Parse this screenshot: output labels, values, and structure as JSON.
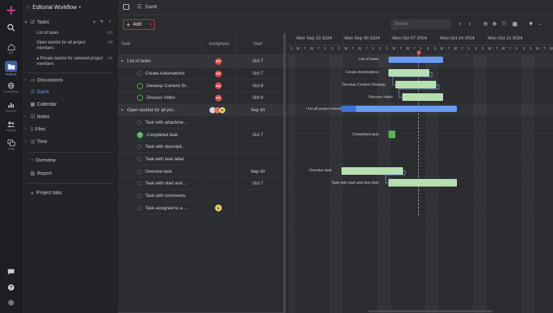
{
  "colors": {
    "accent": "#3d6fd6",
    "brand": "#c23a86",
    "bar_green": "#b7dfb0",
    "bar_blue": "#6b9bf0",
    "done": "#5cae5c",
    "add_border": "#c0365a"
  },
  "rail": [
    {
      "icon": "home-icon",
      "label": "Me"
    },
    {
      "icon": "folder-icon",
      "label": "Projects"
    },
    {
      "icon": "globe-icon",
      "label": "Everything"
    },
    {
      "icon": "chart-icon",
      "label": "Reports"
    },
    {
      "icon": "people-icon",
      "label": "People"
    },
    {
      "icon": "chat-icon",
      "label": "Chat"
    }
  ],
  "sidebar": {
    "project_title": "Editorial Workflow",
    "tasks_label": "Tasks",
    "tasklists": [
      {
        "label": "List of tasks",
        "count": "0/3"
      },
      {
        "label": "Open tasklist for all project members",
        "count": "1/8"
      },
      {
        "label": "Private tasklist for selected project members",
        "count": "1/6"
      }
    ],
    "nav": [
      {
        "label": "Discussions",
        "icon": "discussion-icon"
      },
      {
        "label": "Gantt",
        "icon": "gantt-icon"
      },
      {
        "label": "Calendar",
        "icon": "calendar-icon"
      },
      {
        "label": "Notes",
        "icon": "notes-icon"
      },
      {
        "label": "Files",
        "icon": "files-icon"
      },
      {
        "label": "Time",
        "icon": "clock-icon"
      }
    ],
    "extra": [
      {
        "label": "Overview",
        "icon": "overview-icon"
      },
      {
        "label": "Report",
        "icon": "report-icon"
      }
    ],
    "project_tabs": "Project tabs"
  },
  "header": {
    "view_title": "Gantt"
  },
  "toolbar": {
    "add_label": "Add",
    "search_placeholder": "Search"
  },
  "grid": {
    "col_task": "Task",
    "col_assignees": "Assignees",
    "col_start": "Start",
    "rows": [
      {
        "name": "List of tasks",
        "start": "Oct 7",
        "badge": "DS"
      },
      {
        "name": "Create Automations",
        "start": "Oct 7",
        "badge": "DS"
      },
      {
        "name": "Develop Content St...",
        "start": "Oct 8",
        "badge": "DS"
      },
      {
        "name": "Discuss Video",
        "start": "Oct 9",
        "badge": "DS"
      },
      {
        "name": "Open tasklist for all pro...",
        "start": "Sep 30",
        "badge": ""
      },
      {
        "name": "Task with attachme...",
        "start": "",
        "badge": ""
      },
      {
        "name": "Completed task",
        "start": "Oct 7",
        "badge": ""
      },
      {
        "name": "Task with descripti...",
        "start": "",
        "badge": ""
      },
      {
        "name": "Task with task label",
        "start": "",
        "badge": ""
      },
      {
        "name": "Overdue task",
        "start": "Sep 30",
        "badge": ""
      },
      {
        "name": "Task with start and ...",
        "start": "Oct 7",
        "badge": ""
      },
      {
        "name": "Task with comments",
        "start": "",
        "badge": ""
      },
      {
        "name": "Task assigned to a ...",
        "start": "",
        "badge": "R"
      }
    ]
  },
  "timeline": {
    "weeks": [
      "Mon Sep 23 2024",
      "Mon Sep 30 2024",
      "Mon Oct 07 2024",
      "Mon Oct 14 2024",
      "Mon Oct 21 2024"
    ],
    "days": [
      "S",
      "M",
      "T",
      "W",
      "T",
      "F",
      "S",
      "S",
      "M",
      "T",
      "W",
      "T",
      "F",
      "S",
      "S",
      "M",
      "T",
      "W",
      "T",
      "F",
      "S",
      "S",
      "M",
      "T",
      "W",
      "T",
      "F",
      "S",
      "S",
      "M",
      "T",
      "W",
      "T",
      "F",
      "S",
      "S",
      "M",
      "T",
      "W",
      "T",
      "F",
      "S",
      "S",
      "M"
    ],
    "bar_labels": {
      "list_of_tasks": "List of tasks",
      "create_automations": "Create Automations",
      "develop_content": "Develop Content Strategy",
      "discuss_video": "Discuss Video",
      "open_tasklist": "t for all project members",
      "completed": "Completed task",
      "overdue": "Overdue task",
      "start_due": "Task with start and due date"
    }
  }
}
